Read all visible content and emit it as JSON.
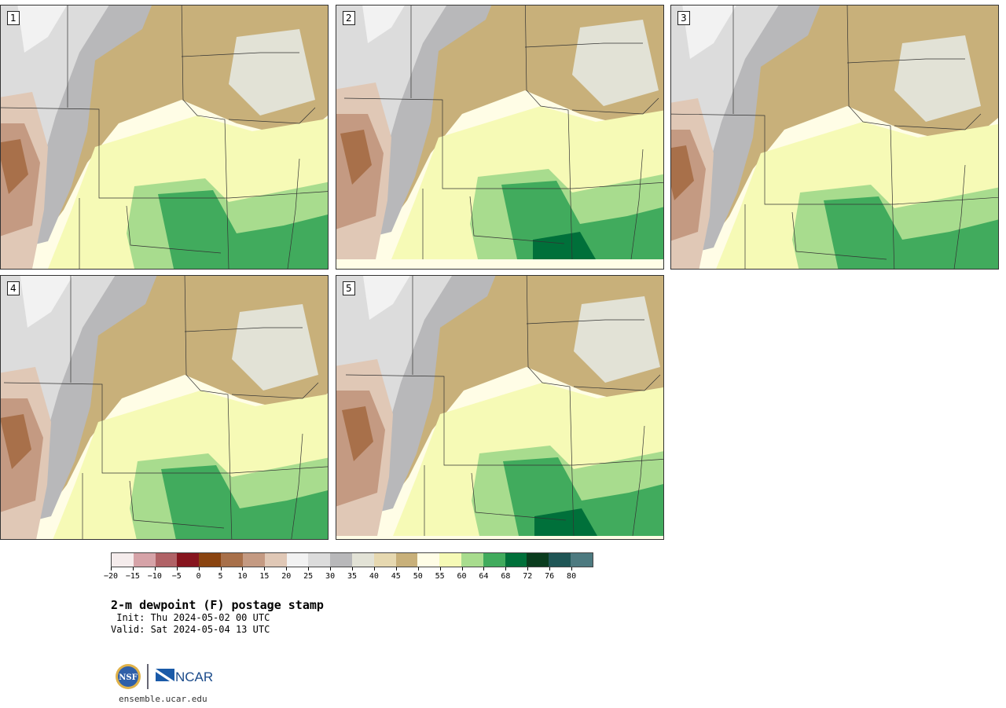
{
  "panels": [
    {
      "label": "1",
      "variant": 0
    },
    {
      "label": "2",
      "variant": 1
    },
    {
      "label": "3",
      "variant": 2
    },
    {
      "label": "4",
      "variant": 3
    },
    {
      "label": "5",
      "variant": 4
    }
  ],
  "colorbar": {
    "colors": [
      "#f5ecec",
      "#d6a3a8",
      "#b06266",
      "#86151e",
      "#8a4410",
      "#a8704a",
      "#c49a82",
      "#e0c8b6",
      "#f2f2f2",
      "#dcdcdc",
      "#b8b8ba",
      "#e2e2d6",
      "#e6d8b0",
      "#c8b07a",
      "#fffde6",
      "#f6fab6",
      "#a8dc8e",
      "#41ab5d",
      "#00703a",
      "#0a3c1e",
      "#1f5555",
      "#4d7a80"
    ],
    "tick_labels": [
      "−20",
      "−15",
      "−10",
      "−5",
      "0",
      "5",
      "10",
      "15",
      "20",
      "25",
      "30",
      "35",
      "40",
      "45",
      "50",
      "55",
      "60",
      "64",
      "68",
      "72",
      "76",
      "80"
    ]
  },
  "title": "2-m dewpoint (F) postage stamp",
  "init": " Init: Thu 2024-05-02 00 UTC",
  "valid": "Valid: Sat 2024-05-04 13 UTC",
  "logos": {
    "left": "NSF",
    "right": "NCAR"
  },
  "site": "ensemble.ucar.edu"
}
